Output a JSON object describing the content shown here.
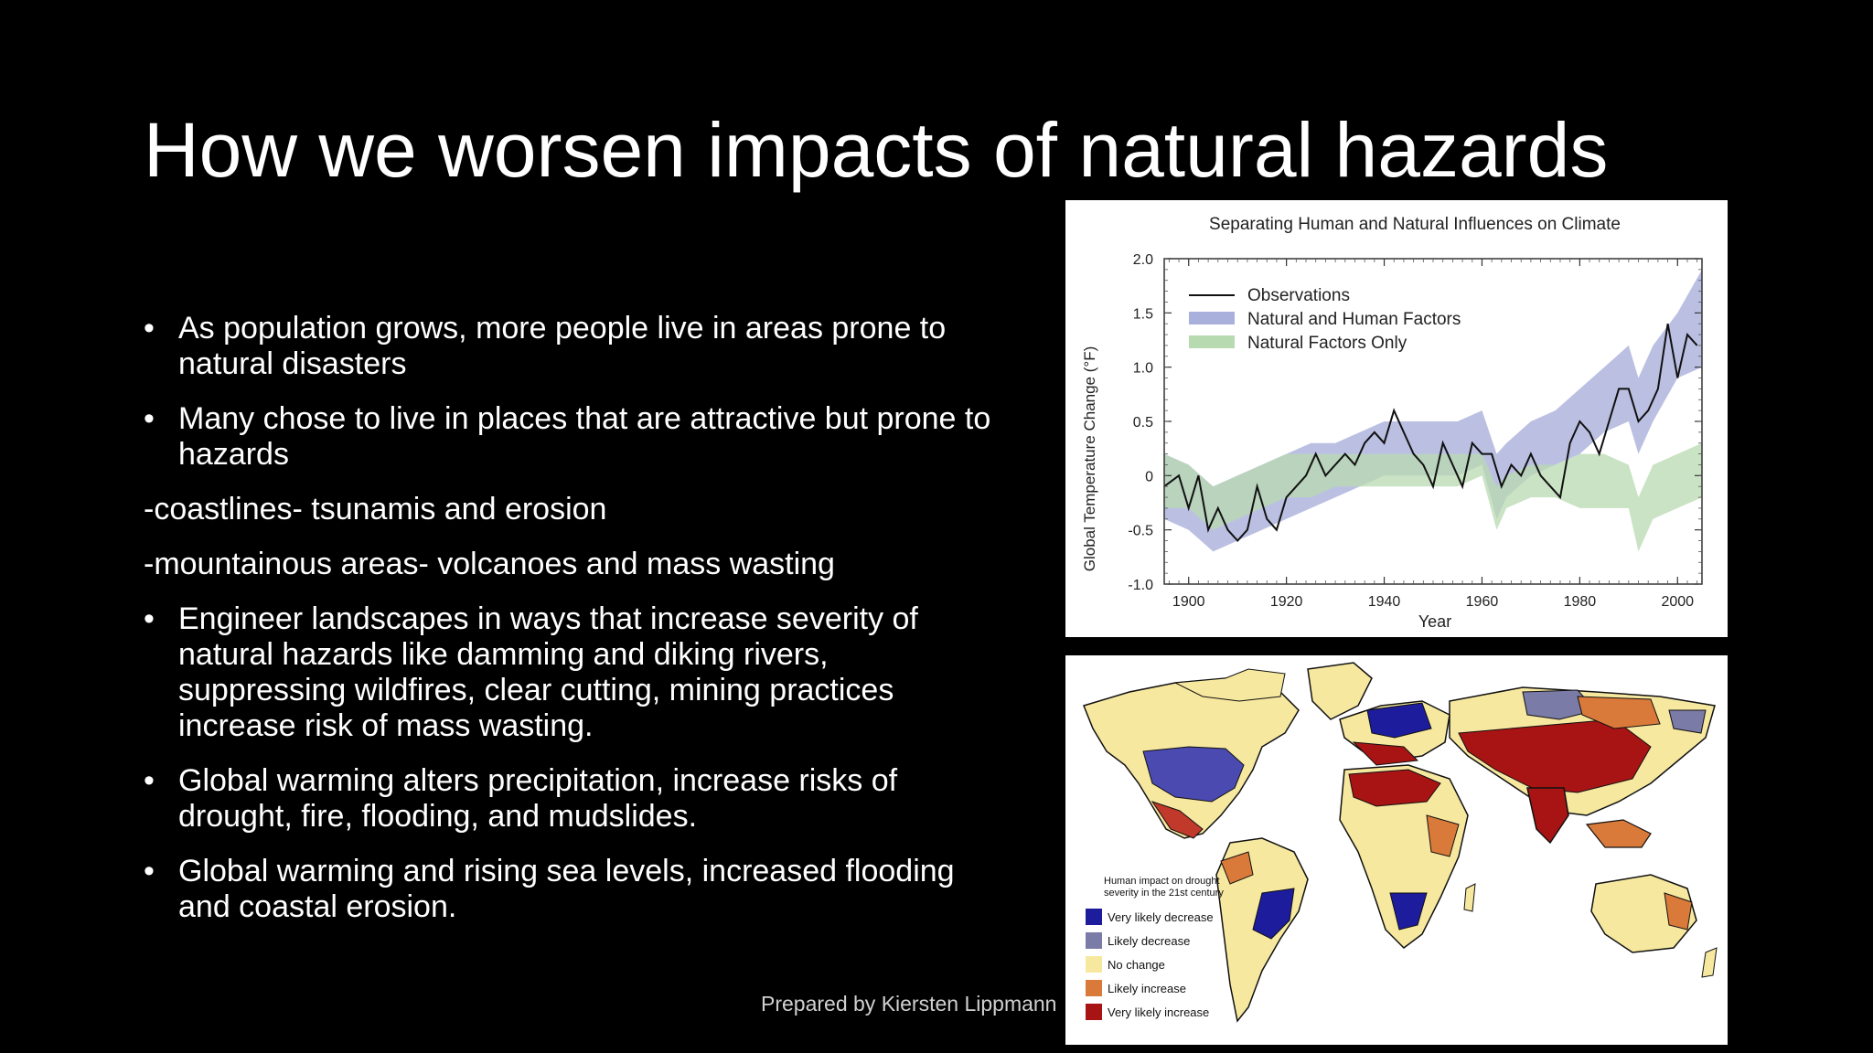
{
  "slide": {
    "title": "How we worsen impacts of natural hazards",
    "bullet_glyph": "•",
    "items": [
      {
        "type": "bullet",
        "text": "As population grows, more people live in areas prone to natural disasters"
      },
      {
        "type": "bullet",
        "text": "Many chose to live in places that are attractive but prone to hazards"
      },
      {
        "type": "plain",
        "text": "-coastlines- tsunamis and erosion"
      },
      {
        "type": "plain",
        "text": "-mountainous areas- volcanoes and mass wasting"
      },
      {
        "type": "bullet",
        "text": "Engineer landscapes in ways that increase severity of natural hazards like damming and diking rivers, suppressing wildfires, clear cutting, mining practices increase risk of mass wasting."
      },
      {
        "type": "bullet",
        "text": "Global warming alters precipitation, increase risks of drought, fire, flooding, and mudslides."
      },
      {
        "type": "bullet",
        "text": "Global warming and rising sea levels, increased flooding and coastal erosion."
      }
    ],
    "footer": "Prepared by Kiersten Lippmann"
  },
  "chart_data": {
    "type": "line",
    "title": "Separating Human and Natural Influences on Climate",
    "xlabel": "Year",
    "ylabel": "Global Temperature Change (°F)",
    "xlim": [
      1895,
      2005
    ],
    "ylim": [
      -1.0,
      2.0
    ],
    "xticks": [
      1900,
      1920,
      1940,
      1960,
      1980,
      2000
    ],
    "yticks": [
      {
        "value": -1.0,
        "label": "-1.0"
      },
      {
        "value": -0.5,
        "label": "-0.5"
      },
      {
        "value": 0,
        "label": "0"
      },
      {
        "value": 0.5,
        "label": "0.5"
      },
      {
        "value": 1.0,
        "label": "1.0"
      },
      {
        "value": 1.5,
        "label": "1.5"
      },
      {
        "value": 2.0,
        "label": "2.0"
      }
    ],
    "legend_position": "top-left",
    "colors": {
      "observations": "#111111",
      "natural_human": "#aab0dc",
      "natural_only": "#b8dab0"
    },
    "series": [
      {
        "name": "Observations",
        "style": "line",
        "x": [
          1895,
          1898,
          1900,
          1902,
          1904,
          1906,
          1908,
          1910,
          1912,
          1914,
          1916,
          1918,
          1920,
          1922,
          1924,
          1926,
          1928,
          1930,
          1932,
          1934,
          1936,
          1938,
          1940,
          1942,
          1944,
          1946,
          1948,
          1950,
          1952,
          1954,
          1956,
          1958,
          1960,
          1962,
          1964,
          1966,
          1968,
          1970,
          1972,
          1974,
          1976,
          1978,
          1980,
          1982,
          1984,
          1986,
          1988,
          1990,
          1992,
          1994,
          1996,
          1998,
          2000,
          2002,
          2004
        ],
        "y": [
          -0.1,
          0.0,
          -0.3,
          0.0,
          -0.5,
          -0.3,
          -0.5,
          -0.6,
          -0.5,
          -0.1,
          -0.4,
          -0.5,
          -0.2,
          -0.1,
          0.0,
          0.2,
          0.0,
          0.1,
          0.2,
          0.1,
          0.3,
          0.4,
          0.3,
          0.6,
          0.4,
          0.2,
          0.1,
          -0.1,
          0.3,
          0.1,
          -0.1,
          0.3,
          0.2,
          0.2,
          -0.1,
          0.1,
          0.0,
          0.2,
          0.0,
          -0.1,
          -0.2,
          0.3,
          0.5,
          0.4,
          0.2,
          0.5,
          0.8,
          0.8,
          0.5,
          0.6,
          0.8,
          1.4,
          0.9,
          1.3,
          1.2
        ]
      },
      {
        "name": "Natural and Human Factors",
        "style": "band",
        "x": [
          1895,
          1900,
          1905,
          1910,
          1915,
          1920,
          1925,
          1930,
          1935,
          1940,
          1945,
          1950,
          1955,
          1960,
          1963,
          1965,
          1970,
          1975,
          1980,
          1985,
          1990,
          1992,
          1995,
          2000,
          2005
        ],
        "lower": [
          -0.4,
          -0.5,
          -0.7,
          -0.6,
          -0.5,
          -0.4,
          -0.3,
          -0.2,
          -0.1,
          0.0,
          0.0,
          0.0,
          0.0,
          0.1,
          -0.4,
          -0.2,
          0.0,
          0.1,
          0.2,
          0.4,
          0.5,
          0.2,
          0.5,
          0.9,
          1.0
        ],
        "upper": [
          0.2,
          0.1,
          -0.1,
          0.0,
          0.1,
          0.2,
          0.3,
          0.3,
          0.4,
          0.5,
          0.5,
          0.5,
          0.5,
          0.6,
          0.2,
          0.3,
          0.5,
          0.6,
          0.8,
          1.0,
          1.2,
          0.9,
          1.2,
          1.5,
          1.9
        ]
      },
      {
        "name": "Natural Factors Only",
        "style": "band",
        "x": [
          1895,
          1900,
          1905,
          1910,
          1915,
          1920,
          1925,
          1930,
          1935,
          1940,
          1945,
          1950,
          1955,
          1960,
          1963,
          1965,
          1970,
          1975,
          1980,
          1985,
          1990,
          1992,
          1995,
          2000,
          2005
        ],
        "lower": [
          -0.3,
          -0.3,
          -0.5,
          -0.4,
          -0.3,
          -0.2,
          -0.2,
          -0.1,
          -0.1,
          -0.1,
          -0.1,
          -0.1,
          -0.1,
          0.0,
          -0.5,
          -0.3,
          -0.2,
          -0.2,
          -0.3,
          -0.3,
          -0.3,
          -0.7,
          -0.4,
          -0.3,
          -0.2
        ],
        "upper": [
          0.2,
          0.1,
          -0.1,
          0.0,
          0.1,
          0.2,
          0.2,
          0.2,
          0.2,
          0.2,
          0.2,
          0.2,
          0.2,
          0.2,
          -0.1,
          0.0,
          0.1,
          0.1,
          0.2,
          0.2,
          0.1,
          -0.2,
          0.1,
          0.2,
          0.3
        ]
      }
    ]
  },
  "map": {
    "ocean_color": "#ffffff",
    "legend_title": "Human impact on drought severity in the 21st century",
    "legend": [
      {
        "label": "Very likely decrease",
        "color": "#1c1c9c"
      },
      {
        "label": "Likely decrease",
        "color": "#7b7ba8"
      },
      {
        "label": "No change",
        "color": "#f7e8a0"
      },
      {
        "label": "Likely increase",
        "color": "#d97a3a"
      },
      {
        "label": "Very likely increase",
        "color": "#a81414"
      }
    ]
  }
}
